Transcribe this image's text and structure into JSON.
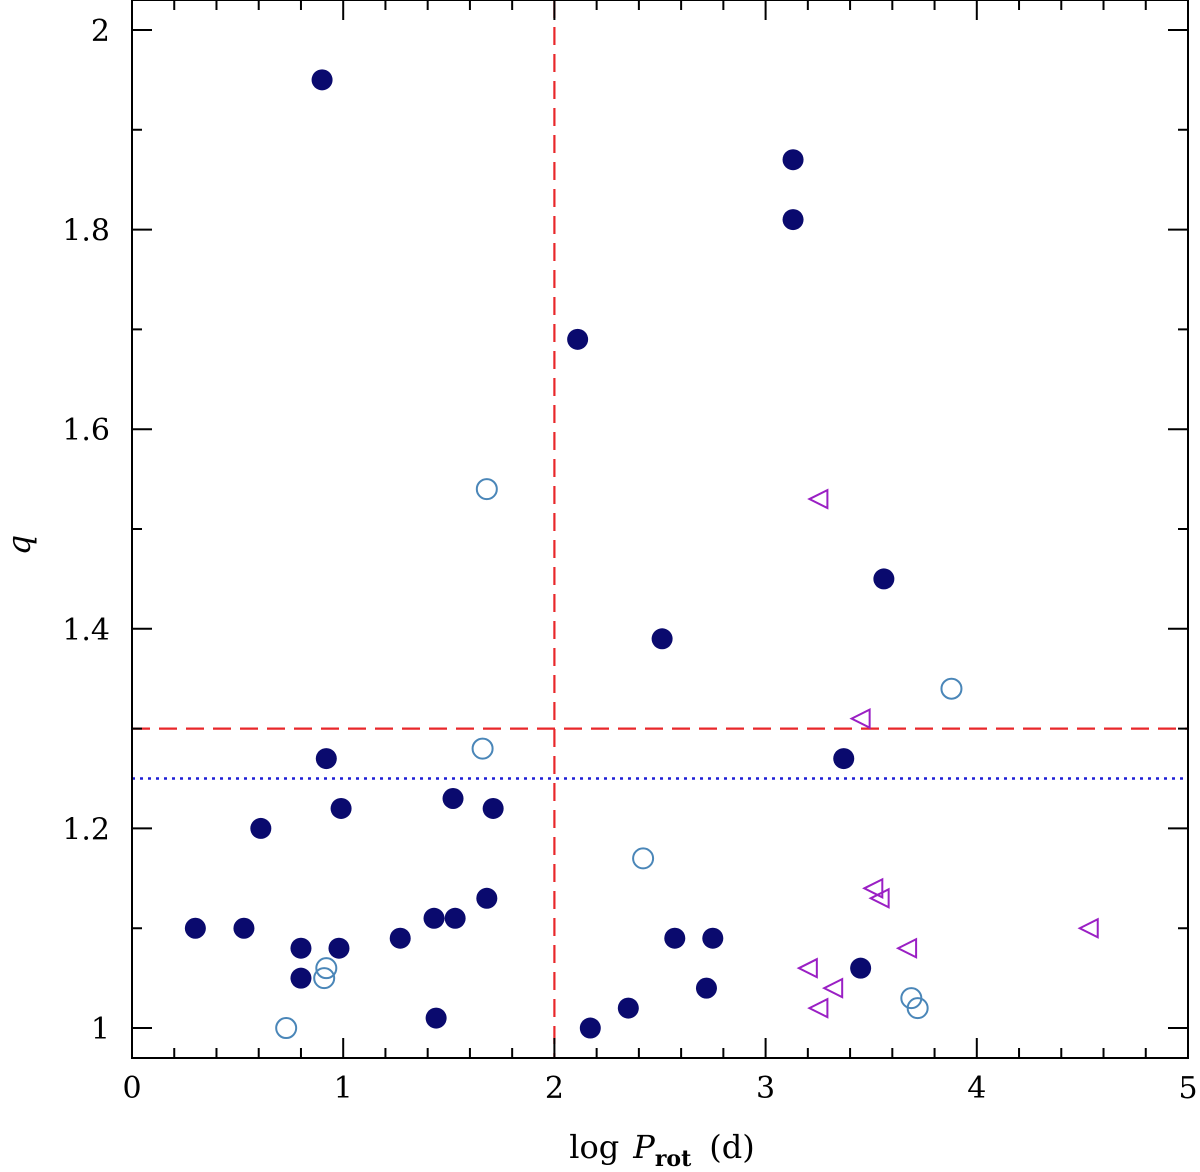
{
  "chart_data": {
    "type": "scatter",
    "title": "",
    "xlabel": {
      "prefix": "log",
      "var": "P",
      "sub": "rot",
      "unit": "(d)"
    },
    "ylabel": "q",
    "xlim": [
      0,
      5
    ],
    "ylim": [
      0.97,
      2.03
    ],
    "x_ticks": [
      0,
      1,
      2,
      3,
      4,
      5
    ],
    "x_tick_labels": [
      "0",
      "1",
      "2",
      "3",
      "4",
      "5"
    ],
    "y_ticks": [
      1.0,
      1.2,
      1.4,
      1.6,
      1.8,
      2.0
    ],
    "y_tick_labels": [
      "1",
      "1.2",
      "1.4",
      "1.6",
      "1.8",
      "2"
    ],
    "x_minor_step": 0.2,
    "y_minor_step": 0.1,
    "grid": false,
    "reference_lines": [
      {
        "orientation": "vertical",
        "value": 2.0,
        "style": "dashed",
        "color": "#e8272a"
      },
      {
        "orientation": "horizontal",
        "value": 1.3,
        "style": "dashed",
        "color": "#e8272a"
      },
      {
        "orientation": "horizontal",
        "value": 1.25,
        "style": "dotted",
        "color": "#1f1fd6"
      }
    ],
    "series": [
      {
        "name": "filled-circles",
        "marker": "filled-circle",
        "color": "#0a0a6e",
        "points": [
          [
            0.9,
            1.95
          ],
          [
            3.13,
            1.87
          ],
          [
            3.13,
            1.81
          ],
          [
            2.11,
            1.69
          ],
          [
            3.56,
            1.45
          ],
          [
            2.51,
            1.39
          ],
          [
            0.92,
            1.27
          ],
          [
            3.37,
            1.27
          ],
          [
            0.99,
            1.22
          ],
          [
            1.52,
            1.23
          ],
          [
            1.71,
            1.22
          ],
          [
            0.61,
            1.2
          ],
          [
            1.68,
            1.13
          ],
          [
            0.3,
            1.1
          ],
          [
            0.53,
            1.1
          ],
          [
            1.43,
            1.11
          ],
          [
            1.53,
            1.11
          ],
          [
            1.27,
            1.09
          ],
          [
            0.8,
            1.08
          ],
          [
            0.98,
            1.08
          ],
          [
            2.57,
            1.09
          ],
          [
            2.75,
            1.09
          ],
          [
            0.8,
            1.05
          ],
          [
            3.45,
            1.06
          ],
          [
            2.72,
            1.04
          ],
          [
            1.44,
            1.01
          ],
          [
            2.35,
            1.02
          ],
          [
            2.17,
            1.0
          ]
        ]
      },
      {
        "name": "open-circles",
        "marker": "open-circle",
        "color": "#4a86b8",
        "points": [
          [
            1.68,
            1.54
          ],
          [
            3.88,
            1.34
          ],
          [
            1.66,
            1.28
          ],
          [
            2.42,
            1.17
          ],
          [
            0.92,
            1.06
          ],
          [
            0.91,
            1.05
          ],
          [
            0.73,
            1.0
          ],
          [
            3.69,
            1.03
          ],
          [
            3.72,
            1.02
          ]
        ]
      },
      {
        "name": "open-triangles",
        "marker": "open-triangle-left",
        "color": "#9a1fc4",
        "points": [
          [
            3.25,
            1.53
          ],
          [
            3.45,
            1.31
          ],
          [
            3.51,
            1.14
          ],
          [
            3.54,
            1.13
          ],
          [
            4.53,
            1.1
          ],
          [
            3.67,
            1.08
          ],
          [
            3.2,
            1.06
          ],
          [
            3.32,
            1.04
          ],
          [
            3.25,
            1.02
          ]
        ]
      }
    ]
  }
}
